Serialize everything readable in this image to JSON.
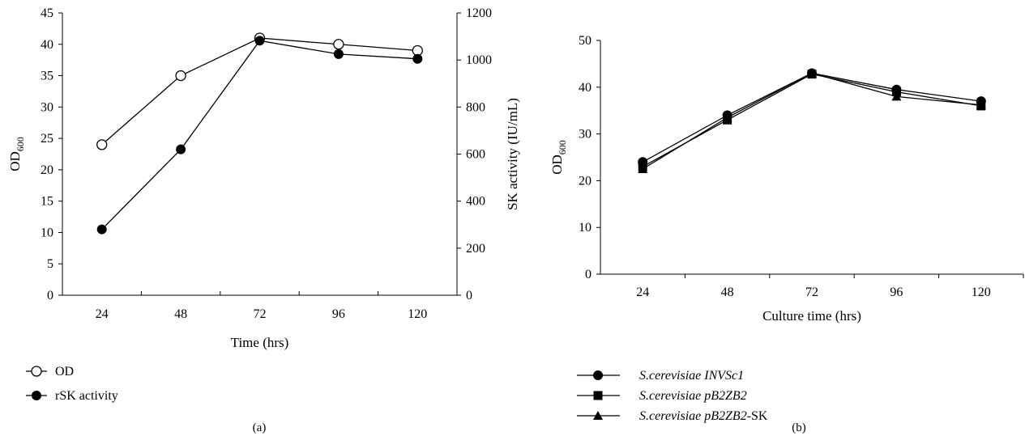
{
  "chart_data": [
    {
      "type": "line",
      "panel_label": "(a)",
      "xlabel": "Time (hrs)",
      "ylabel_left": "OD",
      "ylabel_left_sub": "600",
      "ylabel_right": "SK activity (IU/mL)",
      "categories": [
        "24",
        "48",
        "72",
        "96",
        "120"
      ],
      "ylim_left": [
        0,
        45
      ],
      "yticks_left": [
        0,
        5,
        10,
        15,
        20,
        25,
        30,
        35,
        40,
        45
      ],
      "ylim_right": [
        0,
        1200
      ],
      "yticks_right": [
        0,
        200,
        400,
        600,
        800,
        1000,
        1200
      ],
      "grid": false,
      "legend_position": "bottom-left",
      "series": [
        {
          "name": "OD",
          "axis": "left",
          "marker": "open-circle",
          "values": [
            24,
            35,
            41,
            40,
            39
          ]
        },
        {
          "name": "rSK activity",
          "axis": "right",
          "marker": "filled-circle",
          "values": [
            280,
            620,
            1082,
            1025,
            1005
          ]
        }
      ]
    },
    {
      "type": "line",
      "panel_label": "(b)",
      "xlabel": "Culture time (hrs)",
      "ylabel": "OD",
      "ylabel_sub": "600",
      "categories": [
        "24",
        "48",
        "72",
        "96",
        "120"
      ],
      "ylim": [
        0,
        50
      ],
      "yticks": [
        0,
        10,
        20,
        30,
        40,
        50
      ],
      "grid": false,
      "legend_position": "bottom-left",
      "series": [
        {
          "name": "S.cerevisiae INVSc1",
          "legend_italic": "S.cerevisiae INVSc1",
          "legend_plain": "",
          "marker": "filled-circle",
          "values": [
            24,
            34,
            43,
            39.5,
            37
          ]
        },
        {
          "name": "S.cerevisiae pB2ZB2",
          "legend_italic": "S.cerevisiae pB2ZB2",
          "legend_plain": "",
          "marker": "filled-square",
          "values": [
            23,
            33,
            42.8,
            39,
            36
          ]
        },
        {
          "name": "S.cerevisiae pB2ZB2-SK",
          "legend_italic": "S.cerevisiae pB2ZB2",
          "legend_plain": "-SK",
          "marker": "filled-triangle",
          "values": [
            22.5,
            33.5,
            43,
            38,
            36.2
          ]
        }
      ]
    }
  ]
}
